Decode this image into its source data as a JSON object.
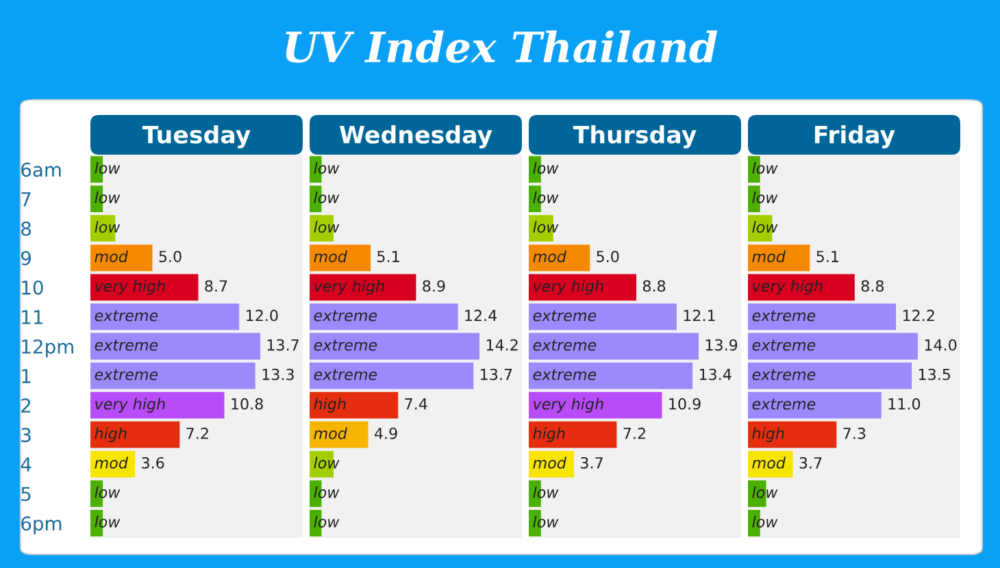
{
  "chart_data": [
    {
      "type": "bar",
      "orientation": "horizontal",
      "title": "Tuesday",
      "categories": [
        "6am",
        "7",
        "8",
        "9",
        "10",
        "11",
        "12pm",
        "1",
        "2",
        "3",
        "4",
        "5",
        "6pm"
      ],
      "values": [
        1,
        1,
        2,
        5.0,
        8.7,
        12.0,
        13.7,
        13.3,
        10.8,
        7.2,
        3.6,
        1,
        1
      ],
      "value_labels": [
        null,
        null,
        null,
        "5.0",
        "8.7",
        "12.0",
        "13.7",
        "13.3",
        "10.8",
        "7.2",
        "3.6",
        null,
        null
      ],
      "colors": [
        "#4cb000",
        "#4cb000",
        "#a3cf00",
        "#f58a00",
        "#d8001f",
        "#9b8afb",
        "#9b8afb",
        "#9b8afb",
        "#b84cf8",
        "#e52e10",
        "#f7e400",
        "#4cb000",
        "#4cb000"
      ],
      "tick_labels": "y",
      "grid": false,
      "annotations": [
        "UV Index Thailand",
        "low",
        "low",
        "low",
        "mod",
        "very high",
        "extreme",
        "extreme",
        "extreme",
        "very high",
        "high",
        "mod",
        "low",
        "low"
      ]
    },
    {
      "type": "bar",
      "orientation": "horizontal",
      "title": "Wednesday",
      "categories": [
        null,
        null,
        null,
        null,
        null,
        null,
        null,
        null,
        null,
        null,
        null,
        null,
        null
      ],
      "values": [
        1,
        1,
        2,
        5.1,
        8.9,
        12.4,
        14.2,
        13.7,
        7.4,
        4.9,
        2,
        1,
        1
      ],
      "value_labels": [
        null,
        null,
        null,
        "5.1",
        "8.9",
        "12.4",
        "14.2",
        "13.7",
        "7.4",
        "4.9",
        null,
        null,
        null
      ],
      "colors": [
        "#4cb000",
        "#4cb000",
        "#a3cf00",
        "#f58a00",
        "#d8001f",
        "#9b8afb",
        "#9b8afb",
        "#9b8afb",
        "#e52e10",
        "#f7b500",
        "#a3cf00",
        "#4cb000",
        "#4cb000"
      ],
      "tick_labels": false,
      "grid": false,
      "annotations": [
        "low",
        "low",
        "low",
        "mod",
        "very high",
        "extreme",
        "extreme",
        "extreme",
        "high",
        "mod",
        "low",
        "low",
        "low"
      ]
    },
    {
      "type": "bar",
      "orientation": "horizontal",
      "title": "Thursday",
      "categories": [
        null,
        null,
        null,
        null,
        null,
        null,
        null,
        null,
        null,
        null,
        null,
        null,
        null
      ],
      "values": [
        1,
        1,
        2,
        5.0,
        8.8,
        12.1,
        13.9,
        13.4,
        10.9,
        7.2,
        3.7,
        1,
        1
      ],
      "value_labels": [
        null,
        null,
        null,
        "5.0",
        "8.8",
        "12.1",
        "13.9",
        "13.4",
        "10.9",
        "7.2",
        "3.7",
        null,
        null
      ],
      "colors": [
        "#4cb000",
        "#4cb000",
        "#a3cf00",
        "#f58a00",
        "#d8001f",
        "#9b8afb",
        "#9b8afb",
        "#9b8afb",
        "#b84cf8",
        "#e52e10",
        "#f7e400",
        "#4cb000",
        "#4cb000"
      ],
      "tick_labels": false,
      "grid": false,
      "annotations": [
        "low",
        "low",
        "low",
        "mod",
        "very high",
        "extreme",
        "extreme",
        "extreme",
        "very high",
        "high",
        "mod",
        "low",
        "low"
      ]
    },
    {
      "type": "bar",
      "orientation": "horizontal",
      "title": "Friday",
      "categories": [
        null,
        null,
        null,
        null,
        null,
        null,
        null,
        null,
        null,
        null,
        null,
        null,
        null
      ],
      "values": [
        1,
        1,
        2,
        5.1,
        8.8,
        12.2,
        14.0,
        13.5,
        11.0,
        7.3,
        3.7,
        1.5,
        1
      ],
      "value_labels": [
        null,
        null,
        null,
        "5.1",
        "8.8",
        "12.2",
        "14.0",
        "13.5",
        "11.0",
        "7.3",
        "3.7",
        null,
        null
      ],
      "colors": [
        "#4cb000",
        "#4cb000",
        "#a3cf00",
        "#f58a00",
        "#d8001f",
        "#9b8afb",
        "#9b8afb",
        "#9b8afb",
        "#9b8afb",
        "#e52e10",
        "#f7e400",
        "#4cb000",
        "#4cb000"
      ],
      "tick_labels": false,
      "grid": false,
      "annotations": [
        "low",
        "low",
        "low",
        "mod",
        "very high",
        "extreme",
        "extreme",
        "extreme",
        "extreme",
        "high",
        "mod",
        "low",
        "low"
      ]
    }
  ]
}
